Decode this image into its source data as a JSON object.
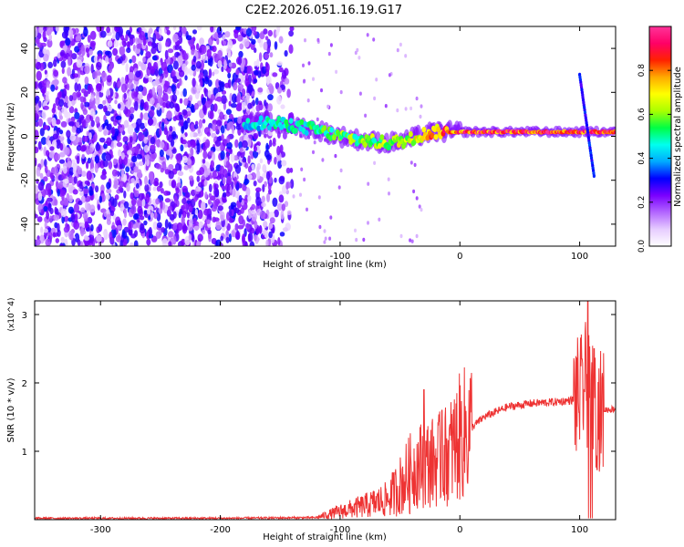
{
  "title": "C2E2.2026.051.16.19.G17",
  "chart_data": [
    {
      "type": "heatmap",
      "name": "spectrogram",
      "xlabel": "Height of straight line (km)",
      "ylabel": "Frequency (Hz)",
      "xlim": [
        -355,
        130
      ],
      "ylim": [
        -50,
        50
      ],
      "xticks": [
        -300,
        -200,
        -100,
        0,
        100
      ],
      "yticks": [
        -40,
        -20,
        0,
        20,
        40
      ],
      "colorbar": {
        "label": "Normalized spectral amplitude",
        "range": [
          0,
          1
        ],
        "ticks": [
          0.0,
          0.2,
          0.4,
          0.6,
          0.8
        ],
        "colors": [
          "#ffffff",
          "#e6ccff",
          "#b366ff",
          "#7a00ff",
          "#0000ff",
          "#00aaff",
          "#00ffee",
          "#00ff44",
          "#aaff00",
          "#ffff00",
          "#ffaa00",
          "#ff2200",
          "#ff0066",
          "#ff3399"
        ]
      },
      "noise_region": {
        "x": [
          -355,
          -140
        ],
        "y": [
          -50,
          50
        ],
        "note": "dense low-amplitude noise"
      },
      "signal_track": [
        {
          "x": -180,
          "y": 6,
          "a": 0.45
        },
        {
          "x": -160,
          "y": 6,
          "a": 0.5
        },
        {
          "x": -140,
          "y": 5,
          "a": 0.5
        },
        {
          "x": -120,
          "y": 3,
          "a": 0.55
        },
        {
          "x": -100,
          "y": 0,
          "a": 0.6
        },
        {
          "x": -80,
          "y": -2,
          "a": 0.6
        },
        {
          "x": -60,
          "y": -3,
          "a": 0.65
        },
        {
          "x": -45,
          "y": -2,
          "a": 0.7
        },
        {
          "x": -30,
          "y": 1,
          "a": 0.8
        },
        {
          "x": -20,
          "y": 2,
          "a": 0.85
        },
        {
          "x": 0,
          "y": 2,
          "a": 0.9
        },
        {
          "x": 40,
          "y": 2,
          "a": 0.95
        },
        {
          "x": 80,
          "y": 2,
          "a": 0.95
        },
        {
          "x": 100,
          "y": 2,
          "a": 0.95
        },
        {
          "x": 130,
          "y": 2,
          "a": 0.95
        }
      ],
      "spike": {
        "x": [
          100,
          112
        ],
        "y": [
          28,
          -18
        ]
      }
    },
    {
      "type": "line",
      "name": "snr",
      "xlabel": "Height of straight line (km)",
      "ylabel": "SNR (10 * v/v)",
      "yscale_label": "(x10^4)",
      "xlim": [
        -355,
        130
      ],
      "ylim": [
        0,
        3.2
      ],
      "xticks": [
        -300,
        -200,
        -100,
        0,
        100
      ],
      "yticks": [
        1,
        2,
        3
      ],
      "color": "#ee3333",
      "envelope": [
        {
          "x": -355,
          "y": 0.02
        },
        {
          "x": -200,
          "y": 0.02
        },
        {
          "x": -120,
          "y": 0.03
        },
        {
          "x": -100,
          "y": 0.12
        },
        {
          "x": -80,
          "y": 0.2
        },
        {
          "x": -60,
          "y": 0.3
        },
        {
          "x": -45,
          "y": 0.6
        },
        {
          "x": -35,
          "y": 0.8
        },
        {
          "x": -20,
          "y": 0.85
        },
        {
          "x": -10,
          "y": 0.95
        },
        {
          "x": 0,
          "y": 1.2
        },
        {
          "x": 20,
          "y": 1.5
        },
        {
          "x": 40,
          "y": 1.65
        },
        {
          "x": 60,
          "y": 1.7
        },
        {
          "x": 80,
          "y": 1.72
        },
        {
          "x": 95,
          "y": 1.75
        },
        {
          "x": 100,
          "y": 1.8
        },
        {
          "x": 105,
          "y": 2.0
        },
        {
          "x": 110,
          "y": 1.7
        },
        {
          "x": 115,
          "y": 1.6
        },
        {
          "x": 130,
          "y": 1.62
        }
      ],
      "peaks": [
        {
          "x": -30,
          "y": 1.9
        },
        {
          "x": -15,
          "y": 1.6
        },
        {
          "x": 102,
          "y": 2.35
        },
        {
          "x": 107,
          "y": 3.2
        },
        {
          "x": 112,
          "y": 2.5
        }
      ]
    }
  ]
}
